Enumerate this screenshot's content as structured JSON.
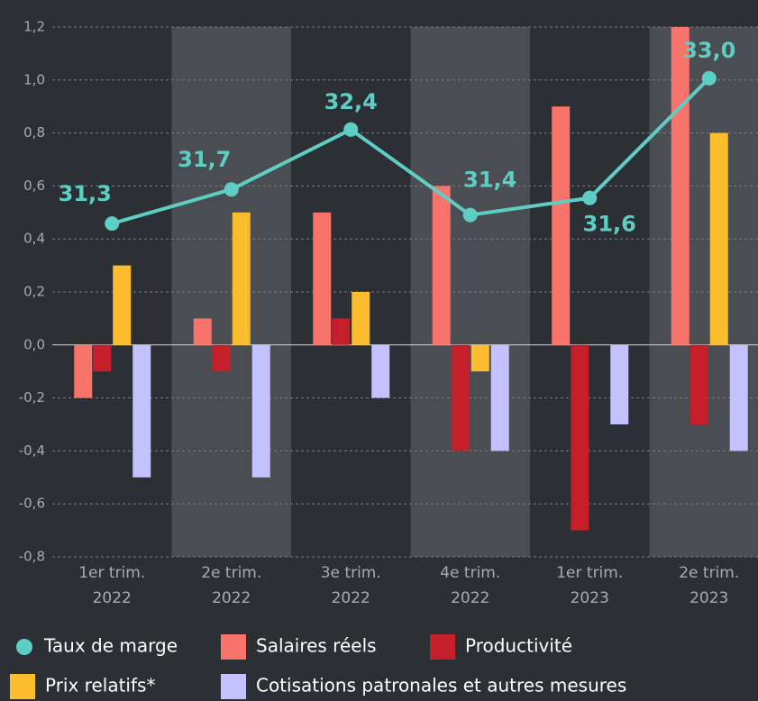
{
  "chart_data": {
    "type": "bar",
    "categories": [
      "1er trim. 2022",
      "2e trim. 2022",
      "3e trim. 2022",
      "4e trim. 2022",
      "1er trim. 2023",
      "2e trim. 2023"
    ],
    "series": [
      {
        "name": "Taux de marge",
        "color": "#5ecec4",
        "type": "line",
        "axis": "y2",
        "values": [
          31.3,
          31.7,
          32.4,
          31.4,
          31.6,
          33.0
        ],
        "value_labels": [
          "31,3",
          "31,7",
          "32,4",
          "31,4",
          "31,6",
          "33,0"
        ]
      },
      {
        "name": "Salaires réels",
        "color": "#f8736a",
        "values": [
          -0.2,
          0.1,
          0.5,
          0.6,
          0.9,
          1.2
        ]
      },
      {
        "name": "Productivité",
        "color": "#c41f2a",
        "values": [
          -0.1,
          -0.1,
          0.1,
          -0.4,
          -0.7,
          -0.3
        ]
      },
      {
        "name": "Prix relatifs*",
        "color": "#fbbd2e",
        "values": [
          0.3,
          0.5,
          0.2,
          -0.1,
          0,
          0.8
        ]
      },
      {
        "name": "Cotisations patronales et autres mesures",
        "color": "#c4c1ff",
        "values": [
          -0.5,
          -0.5,
          -0.2,
          -0.4,
          -0.3,
          -0.4
        ]
      }
    ],
    "ylim": [
      -0.8,
      1.2
    ],
    "yticks": [
      {
        "value": -0.8,
        "label": "-0,8"
      },
      {
        "value": -0.6,
        "label": "-0,6"
      },
      {
        "value": -0.4,
        "label": "-0,4"
      },
      {
        "value": -0.2,
        "label": "-0,2"
      },
      {
        "value": 0,
        "label": "0,0"
      },
      {
        "value": 0.2,
        "label": "0,2"
      },
      {
        "value": 0.4,
        "label": "0,4"
      },
      {
        "value": 0.6,
        "label": "0,6"
      },
      {
        "value": 0.8,
        "label": "0,8"
      },
      {
        "value": 1.0,
        "label": "1,0"
      },
      {
        "value": 1.2,
        "label": "1,2"
      }
    ],
    "y2lim": [
      27.4,
      33.6
    ],
    "grid": true
  }
}
